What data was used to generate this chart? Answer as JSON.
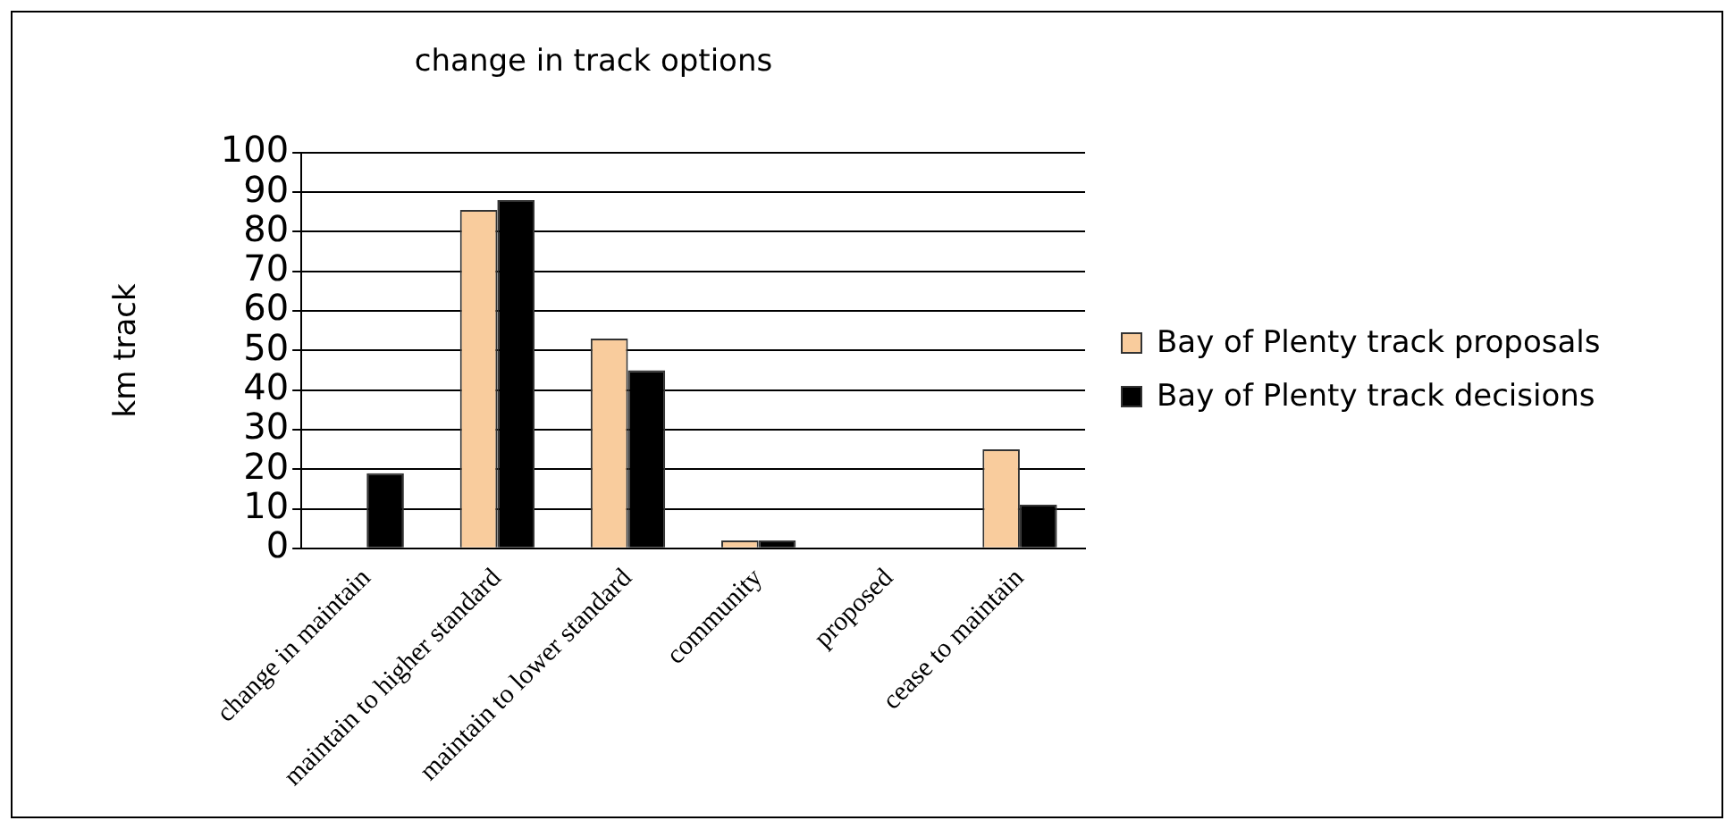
{
  "chart_data": {
    "type": "bar",
    "title": "change in track options",
    "ylabel": "km track",
    "categories": [
      "change in maintain",
      "maintain to higher standard",
      "maintain to lower standard",
      "community",
      "proposed",
      "cease to maintain"
    ],
    "series": [
      {
        "name": "Bay of Plenty track proposals",
        "color": "#f9cc9d",
        "values": [
          0,
          85.5,
          53,
          2,
          0,
          25
        ]
      },
      {
        "name": "Bay of Plenty track decisions",
        "color": "#000000",
        "values": [
          19,
          88,
          45,
          2,
          0,
          11
        ]
      }
    ],
    "ylim": [
      0,
      100
    ],
    "yticks": [
      0,
      10,
      20,
      30,
      40,
      50,
      60,
      70,
      80,
      90,
      100
    ],
    "grid": "y",
    "legend": "right"
  }
}
